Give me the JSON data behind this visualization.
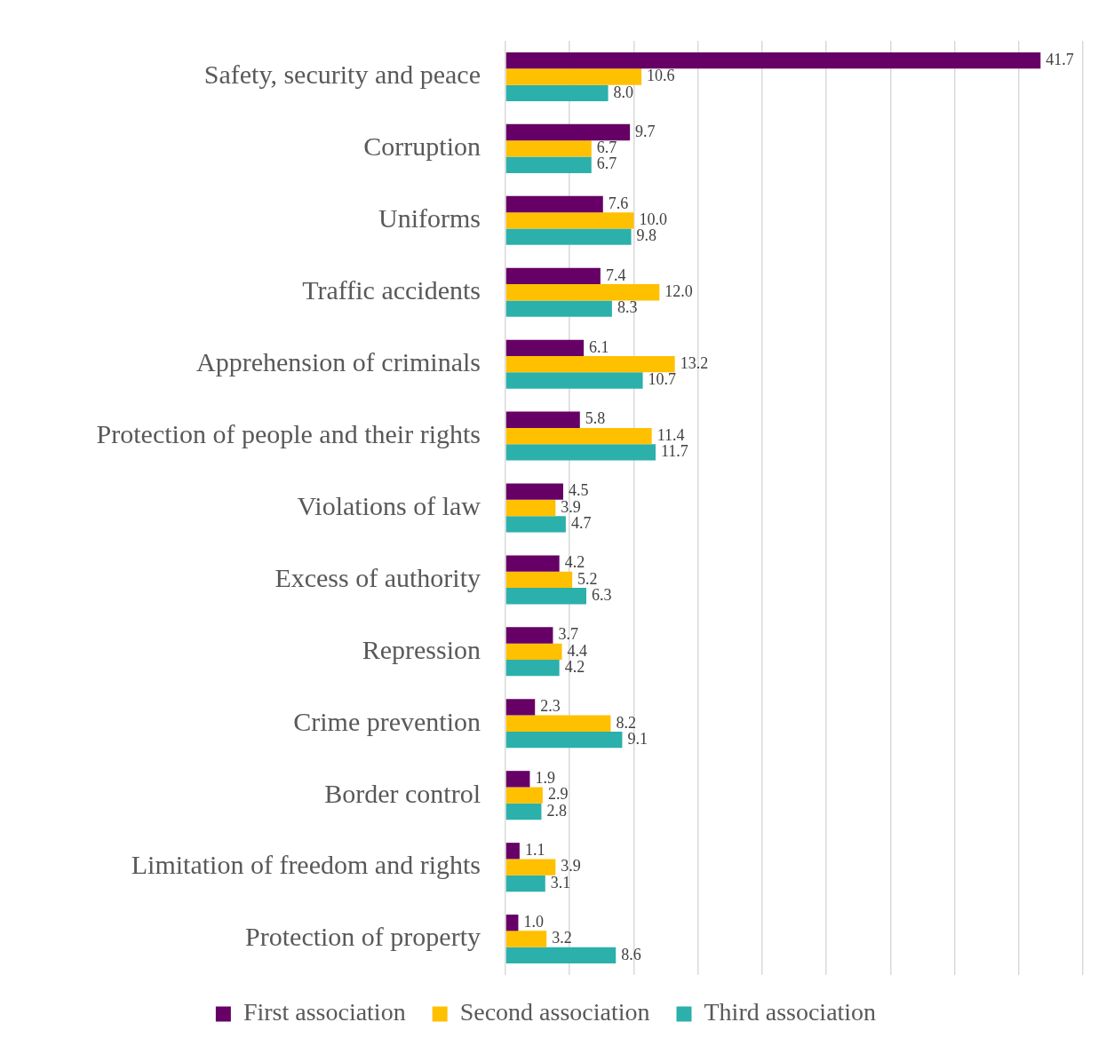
{
  "chart_data": {
    "type": "bar",
    "orientation": "horizontal",
    "categories": [
      "Safety, security and peace",
      "Corruption",
      "Uniforms",
      "Traffic accidents",
      "Apprehension of criminals",
      "Protection of people and their rights",
      "Violations of law",
      "Excess of authority",
      "Repression",
      "Crime prevention",
      "Border control",
      "Limitation of freedom and rights",
      "Protection of property"
    ],
    "series": [
      {
        "name": "First association",
        "color": "#660066",
        "values": [
          41.7,
          9.7,
          7.6,
          7.4,
          6.1,
          5.8,
          4.5,
          4.2,
          3.7,
          2.3,
          1.9,
          1.1,
          1.0
        ],
        "value_labels": [
          "41.7",
          "9.7",
          "7.6",
          "7.4",
          "6.1",
          "5.8",
          "4.5",
          "4.2",
          "3.7",
          "2.3",
          "1.9",
          "1.1",
          "1.0"
        ]
      },
      {
        "name": "Second association",
        "color": "#ffc000",
        "values": [
          10.6,
          6.7,
          10.0,
          12.0,
          13.2,
          11.4,
          3.9,
          5.2,
          4.4,
          8.2,
          2.9,
          3.9,
          3.2
        ],
        "value_labels": [
          "10.6",
          "6.7",
          "10.0",
          "12.0",
          "13.2",
          "11.4",
          "3.9",
          "5.2",
          "4.4",
          "8.2",
          "2.9",
          "3.9",
          "3.2"
        ]
      },
      {
        "name": "Third association",
        "color": "#2bb0ac",
        "values": [
          8.0,
          6.7,
          9.8,
          8.3,
          10.7,
          11.7,
          4.7,
          6.3,
          4.2,
          9.1,
          2.8,
          3.1,
          8.6
        ],
        "value_labels": [
          "8.0",
          "6.7",
          "9.8",
          "8.3",
          "10.7",
          "11.7",
          "4.7",
          "6.3",
          "4.2",
          "9.1",
          "2.8",
          "3.1",
          "8.6"
        ]
      }
    ],
    "xlim": [
      0,
      45
    ],
    "xticks": [
      {
        "value": 0,
        "label": null
      },
      {
        "value": 5,
        "label": null
      },
      {
        "value": 10,
        "label": null
      },
      {
        "value": 15,
        "label": null
      },
      {
        "value": 20,
        "label": null
      },
      {
        "value": 25,
        "label": null
      },
      {
        "value": 30,
        "label": null
      },
      {
        "value": 35,
        "label": null
      },
      {
        "value": 40,
        "label": null
      },
      {
        "value": 45,
        "label": null
      }
    ],
    "grid": "x",
    "legend": "bottom",
    "tick_labels": "y"
  }
}
